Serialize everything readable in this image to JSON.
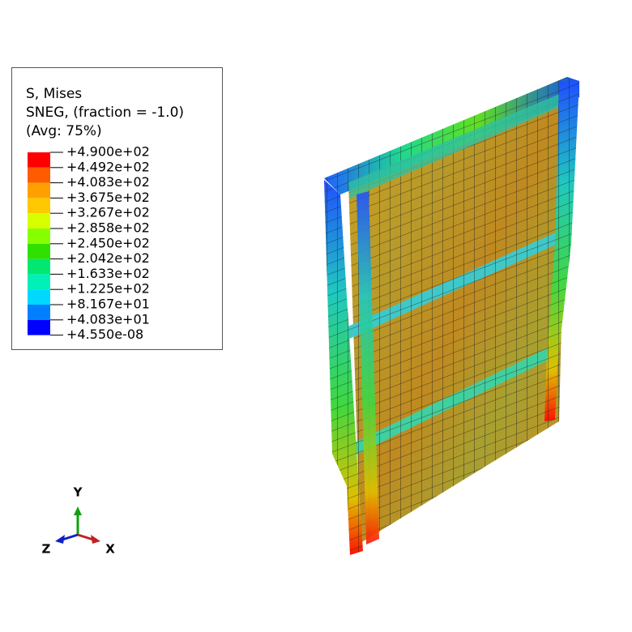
{
  "legend": {
    "title_lines": [
      "S, Mises",
      "SNEG, (fraction = -1.0)",
      "(Avg: 75%)"
    ],
    "labels": [
      "+4.900e+02",
      "+4.492e+02",
      "+4.083e+02",
      "+3.675e+02",
      "+3.267e+02",
      "+2.858e+02",
      "+2.450e+02",
      "+2.042e+02",
      "+1.633e+02",
      "+1.225e+02",
      "+8.167e+01",
      "+4.083e+01",
      "+4.550e-08"
    ]
  },
  "triad": {
    "y": "Y",
    "z": "Z",
    "x": "X"
  }
}
